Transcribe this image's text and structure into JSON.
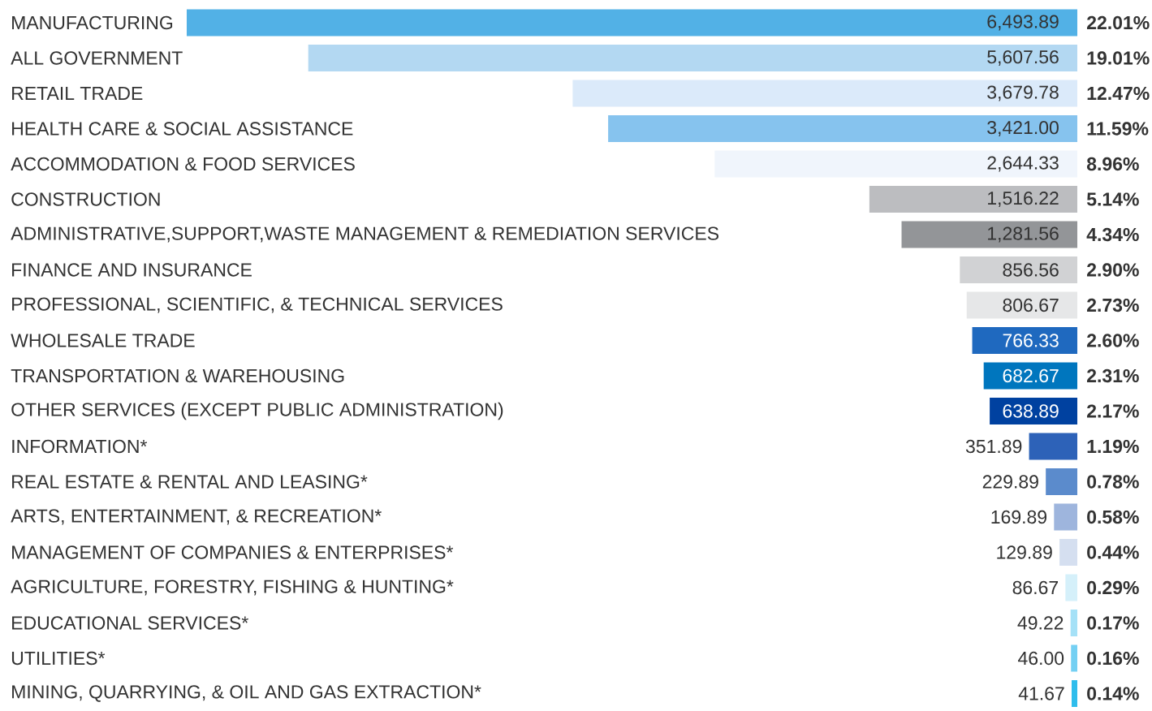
{
  "chart_data": {
    "type": "bar",
    "orientation": "horizontal",
    "categories": [
      "MANUFACTURING",
      "ALL GOVERNMENT",
      "RETAIL TRADE",
      "HEALTH CARE & SOCIAL ASSISTANCE",
      "ACCOMMODATION & FOOD SERVICES",
      "CONSTRUCTION",
      "ADMINISTRATIVE,SUPPORT,WASTE MANAGEMENT & REMEDIATION SERVICES",
      "FINANCE AND INSURANCE",
      "PROFESSIONAL, SCIENTIFIC, & TECHNICAL SERVICES",
      "WHOLESALE TRADE",
      "TRANSPORTATION & WAREHOUSING",
      "OTHER SERVICES (EXCEPT PUBLIC ADMINISTRATION)",
      "INFORMATION*",
      "REAL ESTATE & RENTAL AND LEASING*",
      "ARTS, ENTERTAINMENT, & RECREATION*",
      "MANAGEMENT OF COMPANIES & ENTERPRISES*",
      "AGRICULTURE, FORESTRY, FISHING & HUNTING*",
      "EDUCATIONAL SERVICES*",
      "UTILITIES*",
      "MINING, QUARRYING, & OIL AND GAS EXTRACTION*"
    ],
    "values": [
      6493.89,
      5607.56,
      3679.78,
      3421.0,
      2644.33,
      1516.22,
      1281.56,
      856.56,
      806.67,
      766.33,
      682.67,
      638.89,
      351.89,
      229.89,
      169.89,
      129.89,
      86.67,
      49.22,
      46.0,
      41.67
    ],
    "value_labels": [
      "6,493.89",
      "5,607.56",
      "3,679.78",
      "3,421.00",
      "2,644.33",
      "1,516.22",
      "1,281.56",
      "856.56",
      "806.67",
      "766.33",
      "682.67",
      "638.89",
      "351.89",
      "229.89",
      "169.89",
      "129.89",
      "86.67",
      "49.22",
      "46.00",
      "41.67"
    ],
    "colors": [
      "#52b1e6",
      "#b3d8f2",
      "#dbeafa",
      "#86c3ee",
      "#f0f5fc",
      "#bcbdc0",
      "#939598",
      "#d1d2d4",
      "#e6e7e8",
      "#1f69bf",
      "#0076be",
      "#0041a0",
      "#2d62b8",
      "#5b8bcc",
      "#9eb5dd",
      "#d5dff0",
      "#d5f0fa",
      "#a5e1f7",
      "#74d0f3",
      "#2fbdec"
    ],
    "annotations": [
      "22.01%",
      "19.01%",
      "12.47%",
      "11.59%",
      "8.96%",
      "5.14%",
      "4.34%",
      "2.90%",
      "2.73%",
      "2.60%",
      "2.31%",
      "2.17%",
      "1.19%",
      "0.78%",
      "0.58%",
      "0.44%",
      "0.29%",
      "0.17%",
      "0.16%",
      "0.14%"
    ]
  }
}
